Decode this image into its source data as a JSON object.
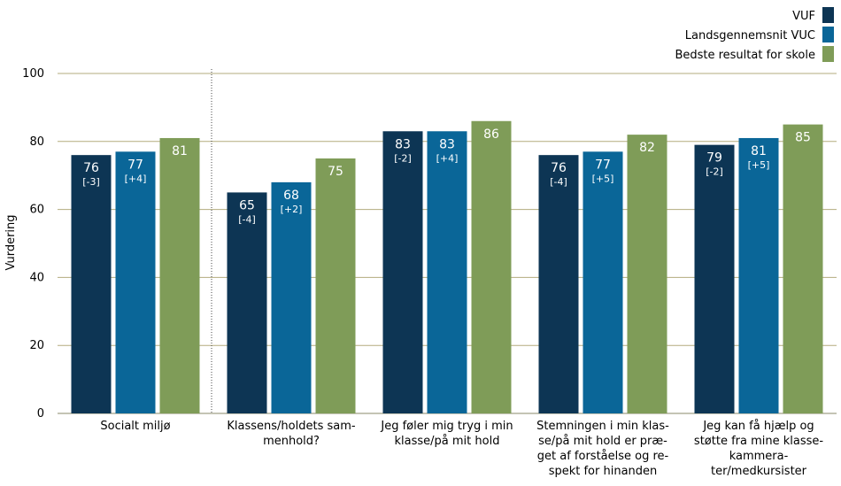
{
  "chart_data": {
    "type": "bar",
    "ylabel": "Vurdering",
    "ylim": [
      0,
      100
    ],
    "yticks": [
      0,
      20,
      40,
      60,
      80,
      100
    ],
    "grid": true,
    "legend_position": "top-right",
    "categories": [
      [
        "Socialt miljø"
      ],
      [
        "Klassens/holdets sam-",
        "menhold?"
      ],
      [
        "Jeg føler mig tryg i min",
        "klasse/på mit hold"
      ],
      [
        "Stemningen i min klas-",
        "se/på mit hold er præ-",
        "get af forståelse og re-",
        "spekt for hinanden"
      ],
      [
        "Jeg kan få hjælp og",
        "støtte fra mine klasse-",
        "kammera-",
        "ter/medkursister"
      ]
    ],
    "series": [
      {
        "name": "VUF",
        "color": "#0d3554",
        "values": [
          76,
          65,
          83,
          76,
          79
        ],
        "labels": [
          "76",
          "65",
          "83",
          "76",
          "79"
        ],
        "diffs": [
          "[-3]",
          "[-4]",
          "[-2]",
          "[-4]",
          "[-2]"
        ]
      },
      {
        "name": "Landsgennemsnit VUC",
        "color": "#0a6698",
        "values": [
          77,
          68,
          83,
          77,
          81
        ],
        "labels": [
          "77",
          "68",
          "83",
          "77",
          "81"
        ],
        "diffs": [
          "[+4]",
          "[+2]",
          "[+4]",
          "[+5]",
          "[+5]"
        ]
      },
      {
        "name": "Bedste resultat for skole",
        "color": "#7f9c58",
        "values": [
          81,
          75,
          86,
          82,
          85
        ],
        "labels": [
          "81",
          "75",
          "86",
          "82",
          "85"
        ],
        "diffs": [
          "",
          "",
          "",
          "",
          ""
        ]
      }
    ]
  }
}
